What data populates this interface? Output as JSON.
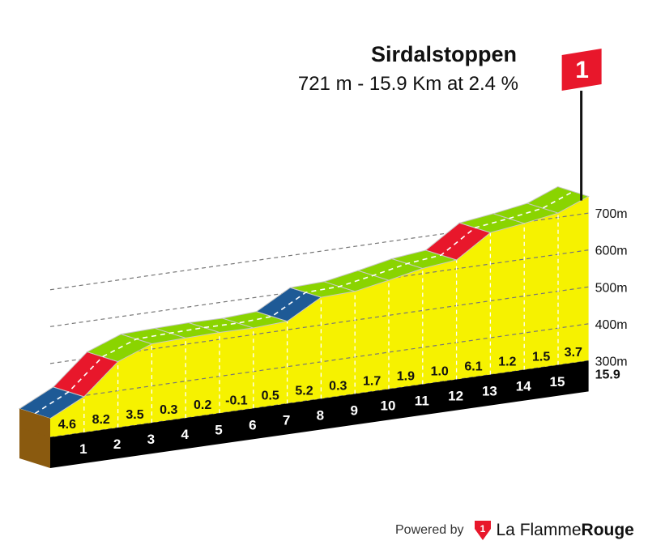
{
  "header": {
    "title": "Sirdalstoppen",
    "subtitle": "721 m - 15.9 Km at 2.4 %"
  },
  "summit_flag": {
    "category": "1",
    "color": "#e8172b"
  },
  "colors": {
    "fill": "#f6f200",
    "very_easy": "#8ad400",
    "moderate": "#1e5a96",
    "hard": "#e8172b",
    "base": "#000000",
    "side": "#8a5a0f"
  },
  "footer": {
    "powered_by": "Powered by",
    "brand_regular": "La Flamme",
    "brand_bold": "Rouge",
    "logo_digit": "1"
  },
  "chart_data": {
    "type": "area",
    "title": "Sirdalstoppen",
    "subtitle": "721 m - 15.9 Km at 2.4 %",
    "xlabel": "",
    "ylabel": "",
    "x_unit": "km",
    "y_unit": "m",
    "ylim": [
      300,
      700
    ],
    "y_ticks": [
      "700m",
      "600m",
      "500m",
      "400m",
      "300m"
    ],
    "y_tick_values": [
      700,
      600,
      500,
      400,
      300
    ],
    "total_distance_label": "15.9",
    "grid": true,
    "km_markers": [
      0,
      1,
      2,
      3,
      4,
      5,
      6,
      7,
      8,
      9,
      10,
      11,
      12,
      13,
      14,
      15,
      15.9
    ],
    "km_labels": [
      "1",
      "2",
      "3",
      "4",
      "5",
      "6",
      "7",
      "8",
      "9",
      "10",
      "11",
      "12",
      "13",
      "14",
      "15"
    ],
    "gradients": [
      4.6,
      8.2,
      3.5,
      0.3,
      0.2,
      -0.1,
      0.5,
      5.2,
      0.3,
      1.7,
      1.9,
      1.0,
      6.1,
      1.2,
      1.5,
      3.7
    ],
    "gradient_labels": [
      "4.6",
      "8.2",
      "3.5",
      "0.3",
      "0.2",
      "-0.1",
      "0.5",
      "5.2",
      "0.3",
      "1.7",
      "1.9",
      "1.0",
      "6.1",
      "1.2",
      "1.5",
      "3.7"
    ],
    "difficulty": [
      "moderate",
      "hard",
      "very_easy",
      "very_easy",
      "very_easy",
      "very_easy",
      "very_easy",
      "moderate",
      "very_easy",
      "very_easy",
      "very_easy",
      "very_easy",
      "hard",
      "very_easy",
      "very_easy",
      "very_easy"
    ],
    "start_elevation": 351,
    "summit_elevation": 721
  }
}
